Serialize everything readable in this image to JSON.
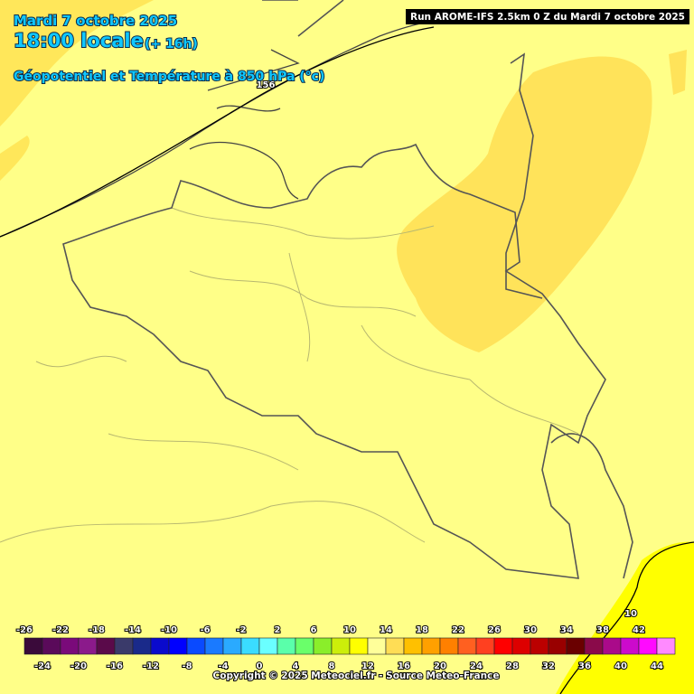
{
  "header": {
    "date": "Mardi 7 octobre 2025",
    "time": "18:00 locale",
    "lead": "(+ 16h)",
    "parameter": "Géopotentiel et Température à 850 hPa (°c)",
    "run": "Run AROME-IFS 2.5km 0 Z du Mardi 7 octobre 2025"
  },
  "map": {
    "contour_labels": [
      "156",
      "10"
    ]
  },
  "scale": {
    "top_labels": [
      -26,
      -22,
      -18,
      -14,
      -10,
      -6,
      -2,
      2,
      6,
      10,
      14,
      18,
      22,
      26,
      30,
      34,
      38,
      42
    ],
    "bottom_labels": [
      -24,
      -20,
      -16,
      -12,
      -8,
      -4,
      0,
      4,
      8,
      12,
      16,
      20,
      24,
      28,
      32,
      36,
      40,
      44
    ],
    "colors": [
      "#3a0a3a",
      "#5a0a5a",
      "#7a0a7a",
      "#8b1a8b",
      "#5a0a4a",
      "#3a3a6a",
      "#1a2a8a",
      "#0a0acd",
      "#0000ff",
      "#0a4aff",
      "#1a7aff",
      "#2aaaff",
      "#3adcff",
      "#6affff",
      "#5affaa",
      "#6aff6a",
      "#8aee2a",
      "#ccee0a",
      "#ffff00",
      "#ffff9a",
      "#ffdd55",
      "#ffc000",
      "#ffa000",
      "#ff8000",
      "#ff6020",
      "#ff4020",
      "#ff0000",
      "#dd0000",
      "#bb0000",
      "#990000",
      "#6a0000",
      "#8a0a4a",
      "#aa0a8a",
      "#cc0acc",
      "#ff0aff",
      "#ff8aff"
    ]
  },
  "footer": {
    "copyright": "Copyright © 2025 Meteociel.fr - Source Meteo-France"
  }
}
